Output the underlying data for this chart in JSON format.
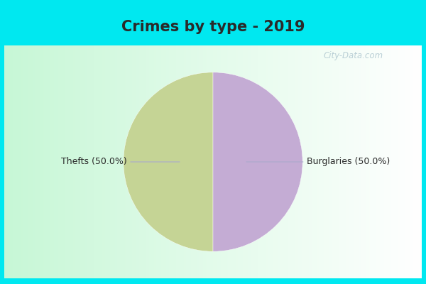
{
  "title": "Crimes by type - 2019",
  "slices": [
    50.0,
    50.0
  ],
  "labels": [
    "Thefts",
    "Burglaries"
  ],
  "colors": [
    "#c5d495",
    "#c4acd4"
  ],
  "startangle": 90,
  "bg_cyan": "#00e8f0",
  "watermark": "City-Data.com",
  "title_fontsize": 15,
  "label_fontsize": 9,
  "thefts_label": "Thefts (50.0%)",
  "burglaries_label": "Burglaries (50.0%)"
}
